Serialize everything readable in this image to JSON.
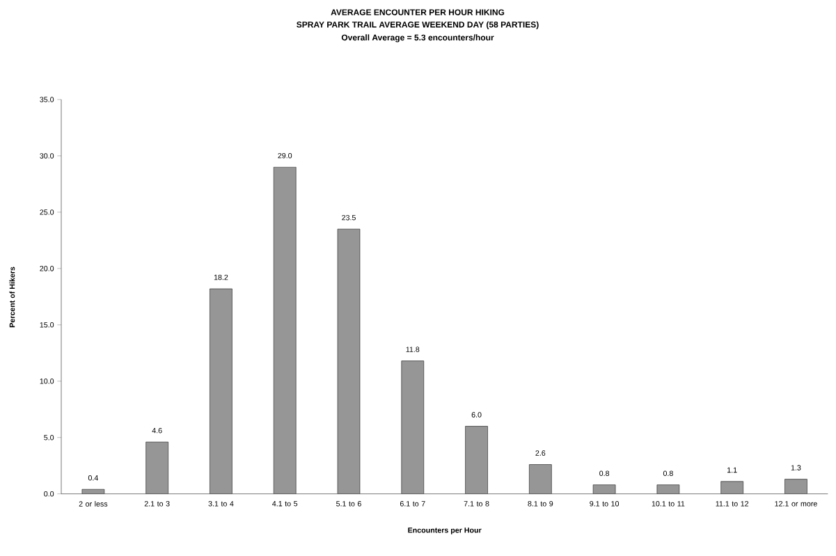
{
  "chart_data": {
    "type": "bar",
    "title": "AVERAGE ENCOUNTER PER HOUR HIKING",
    "subtitle": "SPRAY PARK TRAIL AVERAGE WEEKEND DAY (58 PARTIES)",
    "annotations": [
      "Overall Average = 5.3 encounters/hour"
    ],
    "xlabel": "Encounters per Hour",
    "ylabel": "Percent of Hikers",
    "categories": [
      "2 or less",
      "2.1 to 3",
      "3.1 to 4",
      "4.1 to 5",
      "5.1 to 6",
      "6.1 to 7",
      "7.1 to 8",
      "8.1 to 9",
      "9.1 to 10",
      "10.1 to 11",
      "11.1 to 12",
      "12.1 or more"
    ],
    "values": [
      0.4,
      4.6,
      18.2,
      29.0,
      23.5,
      11.8,
      6.0,
      2.6,
      0.8,
      0.8,
      1.1,
      1.3
    ],
    "value_labels": [
      "0.4",
      "4.6",
      "18.2",
      "29.0",
      "23.5",
      "11.8",
      "6.0",
      "2.6",
      "0.8",
      "0.8",
      "1.1",
      "1.3"
    ],
    "color": "#969696",
    "ylim": [
      0,
      35
    ],
    "yticks": [
      {
        "value": 0,
        "label": "0.0"
      },
      {
        "value": 5,
        "label": "5.0"
      },
      {
        "value": 10,
        "label": "10.0"
      },
      {
        "value": 15,
        "label": "15.0"
      },
      {
        "value": 20,
        "label": "20.0"
      },
      {
        "value": 25,
        "label": "25.0"
      },
      {
        "value": 30,
        "label": "30.0"
      },
      {
        "value": 35,
        "label": "35.0"
      }
    ]
  }
}
